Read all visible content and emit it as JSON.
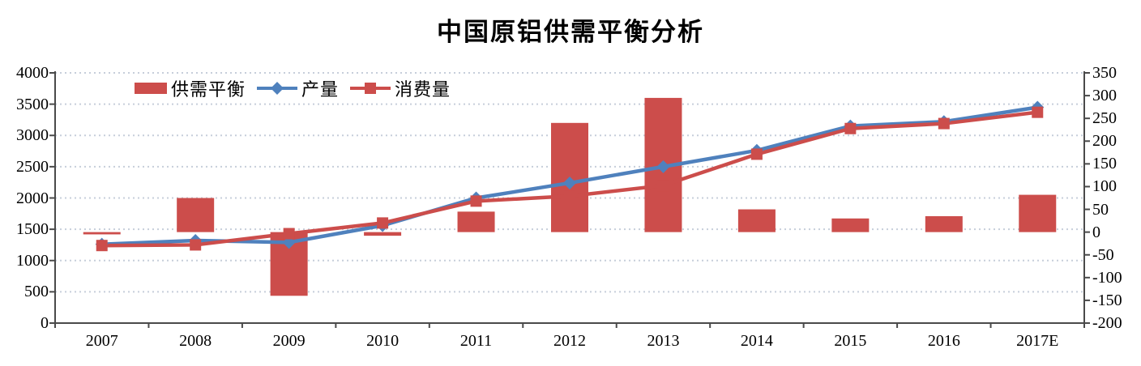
{
  "title": "中国原铝供需平衡分析",
  "legend": {
    "items": [
      {
        "label": "供需平衡",
        "swatch": "bar",
        "color": "#CC4D4B"
      },
      {
        "label": "产量",
        "swatch": "line-diamond",
        "color": "#4F81BD"
      },
      {
        "label": "消费量",
        "swatch": "line-square",
        "color": "#CC4D4B"
      }
    ]
  },
  "colors": {
    "bar_red": "#CC4D4B",
    "line_blue": "#4F81BD",
    "line_red": "#CC4D4B",
    "gridline": "#C6CEDA",
    "axis": "#4A4A4A",
    "background": "#FFFFFF"
  },
  "chart_data": {
    "type": "bar",
    "subtype": "bar-line-combo",
    "title": "中国原铝供需平衡分析",
    "categories": [
      "2007",
      "2008",
      "2009",
      "2010",
      "2011",
      "2012",
      "2013",
      "2014",
      "2015",
      "2016",
      "2017E"
    ],
    "series": [
      {
        "name": "供需平衡",
        "type": "bar",
        "axis": "right",
        "marker": "none",
        "color": "#CC4D4B",
        "values": [
          -5,
          75,
          -140,
          -8,
          45,
          240,
          295,
          50,
          30,
          35,
          82
        ]
      },
      {
        "name": "产量",
        "type": "line",
        "axis": "left",
        "marker": "diamond",
        "color": "#4F81BD",
        "values": [
          1260,
          1320,
          1290,
          1560,
          2000,
          2240,
          2500,
          2760,
          3150,
          3220,
          3450
        ]
      },
      {
        "name": "消费量",
        "type": "line",
        "axis": "left",
        "marker": "square",
        "color": "#CC4D4B",
        "values": [
          1240,
          1250,
          1430,
          1600,
          1950,
          2030,
          2200,
          2700,
          3110,
          3190,
          3370
        ]
      }
    ],
    "axes": {
      "left": {
        "min": 0,
        "max": 4000,
        "step": 500,
        "ticks": [
          "0",
          "500",
          "1000",
          "1500",
          "2000",
          "2500",
          "3000",
          "3500",
          "4000"
        ]
      },
      "right": {
        "min": -200,
        "max": 350,
        "step": 50,
        "ticks": [
          "-200",
          "-150",
          "-100",
          "-50",
          "0",
          "50",
          "100",
          "150",
          "200",
          "250",
          "300",
          "350"
        ]
      }
    },
    "grid": "horizontal-dotted",
    "legend_position": "top-left-inside",
    "xlabel": "",
    "ylabel": ""
  }
}
